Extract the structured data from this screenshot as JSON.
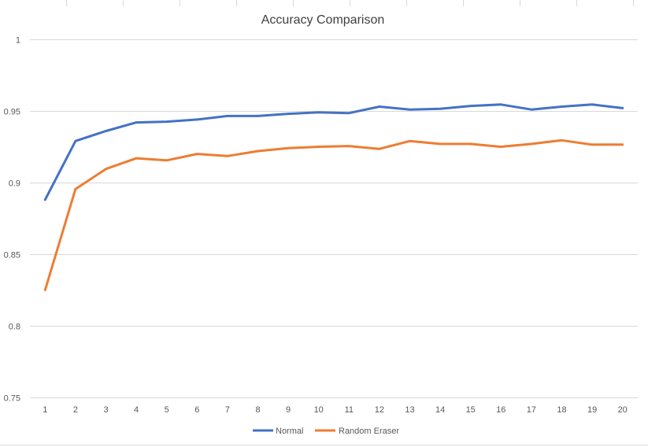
{
  "chart_data": {
    "type": "line",
    "title": "Accuracy Comparison",
    "xlabel": "",
    "ylabel": "",
    "x": [
      1,
      2,
      3,
      4,
      5,
      6,
      7,
      8,
      9,
      10,
      11,
      12,
      13,
      14,
      15,
      16,
      17,
      18,
      19,
      20
    ],
    "ylim": [
      0.75,
      1
    ],
    "yticks": [
      "0.75",
      "0.8",
      "0.85",
      "0.9",
      "0.95",
      "1"
    ],
    "grid": true,
    "legend_position": "bottom",
    "series": [
      {
        "name": "Normal",
        "color": "#4472c4",
        "values": [
          0.888,
          0.929,
          0.936,
          0.942,
          0.9425,
          0.944,
          0.9465,
          0.9465,
          0.948,
          0.949,
          0.9485,
          0.953,
          0.951,
          0.9515,
          0.9535,
          0.9545,
          0.951,
          0.953,
          0.9545,
          0.952
        ]
      },
      {
        "name": "Random Eraser",
        "color": "#ed7d31",
        "values": [
          0.825,
          0.8955,
          0.9095,
          0.917,
          0.9155,
          0.92,
          0.9185,
          0.922,
          0.924,
          0.925,
          0.9255,
          0.9235,
          0.929,
          0.927,
          0.927,
          0.925,
          0.927,
          0.9295,
          0.9265,
          0.9265
        ]
      }
    ]
  },
  "colors": {
    "grid": "#d9d9d9",
    "text": "#595959",
    "title": "#404040"
  }
}
